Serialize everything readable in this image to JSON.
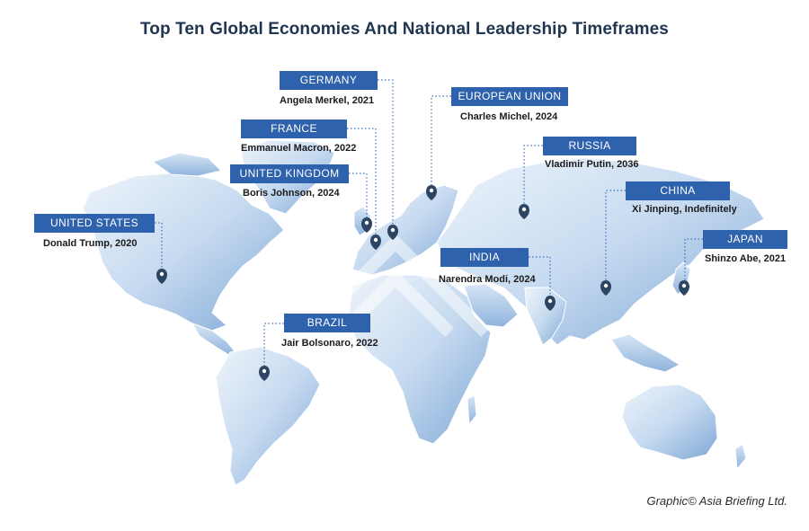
{
  "title": "Top Ten Global Economies And National Leadership Timeframes",
  "credit": "Graphic© Asia Briefing Ltd.",
  "colors": {
    "label_bg": "#2f62ad",
    "land_light": "#dbe8f5",
    "land_dark": "#7aa3d4",
    "pin": "#2b4563",
    "connector": "#3a6fbf"
  },
  "economies": [
    {
      "country": "UNITED STATES",
      "leader": "Donald Trump, 2020"
    },
    {
      "country": "GERMANY",
      "leader": "Angela Merkel, 2021"
    },
    {
      "country": "FRANCE",
      "leader": "Emmanuel Macron, 2022"
    },
    {
      "country": "UNITED KINGDOM",
      "leader": "Boris Johnson, 2024"
    },
    {
      "country": "EUROPEAN UNION",
      "leader": "Charles Michel, 2024"
    },
    {
      "country": "RUSSIA",
      "leader": "Vladimir Putin, 2036"
    },
    {
      "country": "CHINA",
      "leader": "Xi Jinping, Indefinitely"
    },
    {
      "country": "JAPAN",
      "leader": "Shinzo Abe, 2021"
    },
    {
      "country": "INDIA",
      "leader": "Narendra Modi, 2024"
    },
    {
      "country": "BRAZIL",
      "leader": "Jair Bolsonaro, 2022"
    }
  ]
}
